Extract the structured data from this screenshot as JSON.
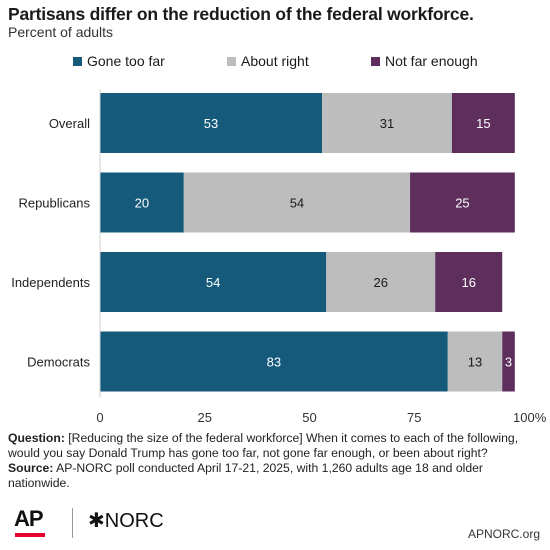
{
  "header": {
    "title": "Partisans differ on the reduction of the federal workforce.",
    "subtitle": "Percent of adults"
  },
  "legend": [
    {
      "label": "Gone too far",
      "color": "#155a7a"
    },
    {
      "label": "About right",
      "color": "#bdbdbd"
    },
    {
      "label": "Not far enough",
      "color": "#5e2e5c"
    }
  ],
  "chart_data": {
    "type": "bar",
    "orientation": "horizontal",
    "stacked": true,
    "categories": [
      "Overall",
      "Republicans",
      "Independents",
      "Democrats"
    ],
    "series": [
      {
        "name": "Gone too far",
        "values": [
          53,
          20,
          54,
          83
        ],
        "color": "#155a7a"
      },
      {
        "name": "About right",
        "values": [
          31,
          54,
          26,
          13
        ],
        "color": "#bdbdbd"
      },
      {
        "name": "Not far enough",
        "values": [
          15,
          25,
          16,
          3
        ],
        "color": "#5e2e5c"
      }
    ],
    "xticks": [
      "0",
      "25",
      "50",
      "75",
      "100%"
    ],
    "xlim": [
      0,
      100
    ],
    "grid": false,
    "legend_position": "top"
  },
  "notes": {
    "question_label": "Question:",
    "question_text": "[Reducing the size of the federal workforce] When it comes to each of the following, would you say Donald Trump has gone too far, not gone far enough, or been about right?",
    "source_label": "Source:",
    "source_text": "AP-NORC poll conducted April 17-21, 2025, with 1,260 adults age 18 and older nationwide."
  },
  "footer": {
    "ap_logo": "AP",
    "norc_logo": "✱NORC",
    "site": "APNORC.org"
  }
}
